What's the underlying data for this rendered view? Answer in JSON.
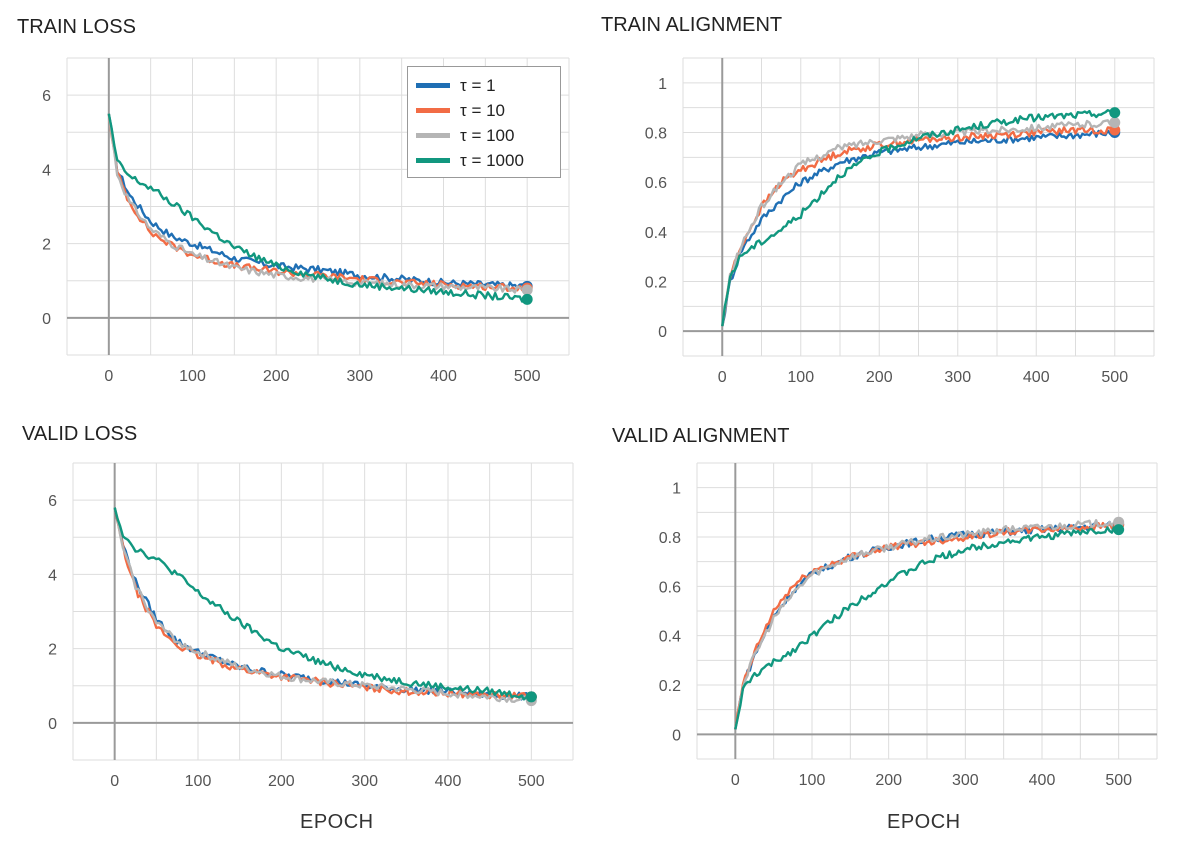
{
  "colors": {
    "tau1": "#1f6fb4",
    "tau10": "#f26c45",
    "tau100": "#b5b5b5",
    "tau1000": "#11977f",
    "grid": "#dddddd",
    "axis": "#9a9a9a"
  },
  "legend": [
    {
      "label": "τ = 1",
      "key": "tau1"
    },
    {
      "label": "τ = 10",
      "key": "tau10"
    },
    {
      "label": "τ = 100",
      "key": "tau100"
    },
    {
      "label": "τ = 1000",
      "key": "tau1000"
    }
  ],
  "xlabels": {
    "bottom_left": "EPOCH",
    "bottom_right": "EPOCH"
  },
  "chart_data": [
    {
      "type": "line",
      "title": "TRAIN LOSS",
      "xlim": [
        -50,
        550
      ],
      "ylim": [
        -1,
        7
      ],
      "xticks": [
        0,
        100,
        200,
        300,
        400,
        500
      ],
      "yticks": [
        0,
        2,
        4,
        6
      ],
      "ytick_labels": [
        "0",
        "2",
        "4",
        "6"
      ],
      "legend_position": "top-right",
      "series": [
        {
          "name": "τ = 1",
          "key": "tau1",
          "x": [
            0,
            10,
            25,
            50,
            75,
            100,
            150,
            200,
            250,
            300,
            350,
            400,
            450,
            500
          ],
          "y": [
            5.5,
            4.0,
            3.3,
            2.6,
            2.2,
            2.0,
            1.6,
            1.4,
            1.3,
            1.15,
            1.05,
            0.95,
            0.9,
            0.85
          ]
        },
        {
          "name": "τ = 10",
          "key": "tau10",
          "x": [
            0,
            10,
            25,
            50,
            75,
            100,
            150,
            200,
            250,
            300,
            350,
            400,
            450,
            500
          ],
          "y": [
            5.5,
            3.9,
            3.1,
            2.3,
            1.95,
            1.7,
            1.4,
            1.25,
            1.15,
            1.05,
            0.95,
            0.9,
            0.85,
            0.8
          ]
        },
        {
          "name": "τ = 100",
          "key": "tau100",
          "x": [
            0,
            10,
            25,
            50,
            75,
            100,
            150,
            200,
            250,
            300,
            350,
            400,
            450,
            500
          ],
          "y": [
            5.5,
            3.9,
            3.1,
            2.4,
            2.0,
            1.7,
            1.35,
            1.15,
            1.05,
            0.95,
            0.9,
            0.85,
            0.8,
            0.75
          ]
        },
        {
          "name": "τ = 1000",
          "key": "tau1000",
          "x": [
            0,
            10,
            25,
            50,
            75,
            100,
            150,
            200,
            250,
            300,
            350,
            400,
            450,
            500
          ],
          "y": [
            5.5,
            4.2,
            3.8,
            3.5,
            3.1,
            2.7,
            1.9,
            1.4,
            1.1,
            0.9,
            0.8,
            0.7,
            0.6,
            0.5
          ]
        }
      ]
    },
    {
      "type": "line",
      "title": "TRAIN ALIGNMENT",
      "xlim": [
        -50,
        550
      ],
      "ylim": [
        -0.1,
        1.1
      ],
      "xticks": [
        0,
        100,
        200,
        300,
        400,
        500
      ],
      "yticks": [
        0,
        0.2,
        0.4,
        0.6,
        0.8,
        1
      ],
      "ytick_labels": [
        "0",
        "0.2",
        "0.4",
        "0.6",
        "0.8",
        "1"
      ],
      "series": [
        {
          "name": "τ = 1",
          "key": "tau1",
          "x": [
            0,
            10,
            25,
            50,
            75,
            100,
            150,
            200,
            250,
            300,
            350,
            400,
            450,
            500
          ],
          "y": [
            0.02,
            0.2,
            0.33,
            0.45,
            0.53,
            0.6,
            0.68,
            0.72,
            0.74,
            0.76,
            0.77,
            0.78,
            0.79,
            0.8
          ]
        },
        {
          "name": "τ = 10",
          "key": "tau10",
          "x": [
            0,
            10,
            25,
            50,
            75,
            100,
            150,
            200,
            250,
            300,
            350,
            400,
            450,
            500
          ],
          "y": [
            0.02,
            0.22,
            0.35,
            0.5,
            0.6,
            0.65,
            0.72,
            0.75,
            0.77,
            0.78,
            0.79,
            0.8,
            0.81,
            0.81
          ]
        },
        {
          "name": "τ = 100",
          "key": "tau100",
          "x": [
            0,
            10,
            25,
            50,
            75,
            100,
            150,
            200,
            250,
            300,
            350,
            400,
            450,
            500
          ],
          "y": [
            0.02,
            0.22,
            0.35,
            0.5,
            0.6,
            0.67,
            0.74,
            0.77,
            0.79,
            0.8,
            0.81,
            0.82,
            0.83,
            0.84
          ]
        },
        {
          "name": "τ = 1000",
          "key": "tau1000",
          "x": [
            0,
            10,
            25,
            50,
            75,
            100,
            150,
            200,
            250,
            300,
            350,
            400,
            450,
            500
          ],
          "y": [
            0.02,
            0.22,
            0.31,
            0.36,
            0.41,
            0.47,
            0.63,
            0.72,
            0.78,
            0.81,
            0.84,
            0.86,
            0.87,
            0.88
          ]
        }
      ]
    },
    {
      "type": "line",
      "title": "VALID LOSS",
      "xlim": [
        -50,
        550
      ],
      "ylim": [
        -1,
        7
      ],
      "xticks": [
        0,
        100,
        200,
        300,
        400,
        500
      ],
      "yticks": [
        0,
        2,
        4,
        6
      ],
      "ytick_labels": [
        "0",
        "2",
        "4",
        "6"
      ],
      "xlabel": "EPOCH",
      "series": [
        {
          "name": "τ = 1",
          "key": "tau1",
          "x": [
            0,
            10,
            25,
            50,
            75,
            100,
            150,
            200,
            250,
            300,
            350,
            400,
            450,
            500
          ],
          "y": [
            5.8,
            4.8,
            3.8,
            2.8,
            2.2,
            1.9,
            1.5,
            1.3,
            1.15,
            1.0,
            0.9,
            0.85,
            0.75,
            0.7
          ]
        },
        {
          "name": "τ = 10",
          "key": "tau10",
          "x": [
            0,
            10,
            25,
            50,
            75,
            100,
            150,
            200,
            250,
            300,
            350,
            400,
            450,
            500
          ],
          "y": [
            5.8,
            4.7,
            3.6,
            2.6,
            2.1,
            1.8,
            1.45,
            1.25,
            1.1,
            0.95,
            0.85,
            0.8,
            0.75,
            0.7
          ]
        },
        {
          "name": "τ = 100",
          "key": "tau100",
          "x": [
            0,
            10,
            25,
            50,
            75,
            100,
            150,
            200,
            250,
            300,
            350,
            400,
            450,
            500
          ],
          "y": [
            5.8,
            4.7,
            3.7,
            2.7,
            2.2,
            1.9,
            1.5,
            1.25,
            1.1,
            1.0,
            0.9,
            0.8,
            0.7,
            0.6
          ]
        },
        {
          "name": "τ = 1000",
          "key": "tau1000",
          "x": [
            0,
            10,
            25,
            50,
            75,
            100,
            150,
            200,
            250,
            300,
            350,
            400,
            450,
            500
          ],
          "y": [
            5.8,
            5.1,
            4.7,
            4.4,
            4.0,
            3.5,
            2.7,
            2.0,
            1.6,
            1.3,
            1.1,
            0.95,
            0.85,
            0.7
          ]
        }
      ]
    },
    {
      "type": "line",
      "title": "VALID ALIGNMENT",
      "xlim": [
        -50,
        550
      ],
      "ylim": [
        -0.1,
        1.1
      ],
      "xticks": [
        0,
        100,
        200,
        300,
        400,
        500
      ],
      "yticks": [
        0,
        0.2,
        0.4,
        0.6,
        0.8,
        1
      ],
      "ytick_labels": [
        "0",
        "0.2",
        "0.4",
        "0.6",
        "0.8",
        "1"
      ],
      "xlabel": "EPOCH",
      "series": [
        {
          "name": "τ = 1",
          "key": "tau1",
          "x": [
            0,
            10,
            25,
            50,
            75,
            100,
            150,
            200,
            250,
            300,
            350,
            400,
            450,
            500
          ],
          "y": [
            0.02,
            0.2,
            0.32,
            0.48,
            0.58,
            0.65,
            0.72,
            0.76,
            0.79,
            0.81,
            0.82,
            0.83,
            0.84,
            0.85
          ]
        },
        {
          "name": "τ = 10",
          "key": "tau10",
          "x": [
            0,
            10,
            25,
            50,
            75,
            100,
            150,
            200,
            250,
            300,
            350,
            400,
            450,
            500
          ],
          "y": [
            0.02,
            0.2,
            0.33,
            0.5,
            0.6,
            0.66,
            0.72,
            0.76,
            0.78,
            0.8,
            0.82,
            0.83,
            0.84,
            0.85
          ]
        },
        {
          "name": "τ = 100",
          "key": "tau100",
          "x": [
            0,
            10,
            25,
            50,
            75,
            100,
            150,
            200,
            250,
            300,
            350,
            400,
            450,
            500
          ],
          "y": [
            0.02,
            0.2,
            0.32,
            0.47,
            0.57,
            0.65,
            0.72,
            0.76,
            0.79,
            0.81,
            0.83,
            0.84,
            0.85,
            0.86
          ]
        },
        {
          "name": "τ = 1000",
          "key": "tau1000",
          "x": [
            0,
            10,
            25,
            50,
            75,
            100,
            150,
            200,
            250,
            300,
            350,
            400,
            450,
            500
          ],
          "y": [
            0.02,
            0.18,
            0.24,
            0.29,
            0.34,
            0.4,
            0.52,
            0.62,
            0.7,
            0.75,
            0.78,
            0.8,
            0.82,
            0.83
          ]
        }
      ]
    }
  ]
}
